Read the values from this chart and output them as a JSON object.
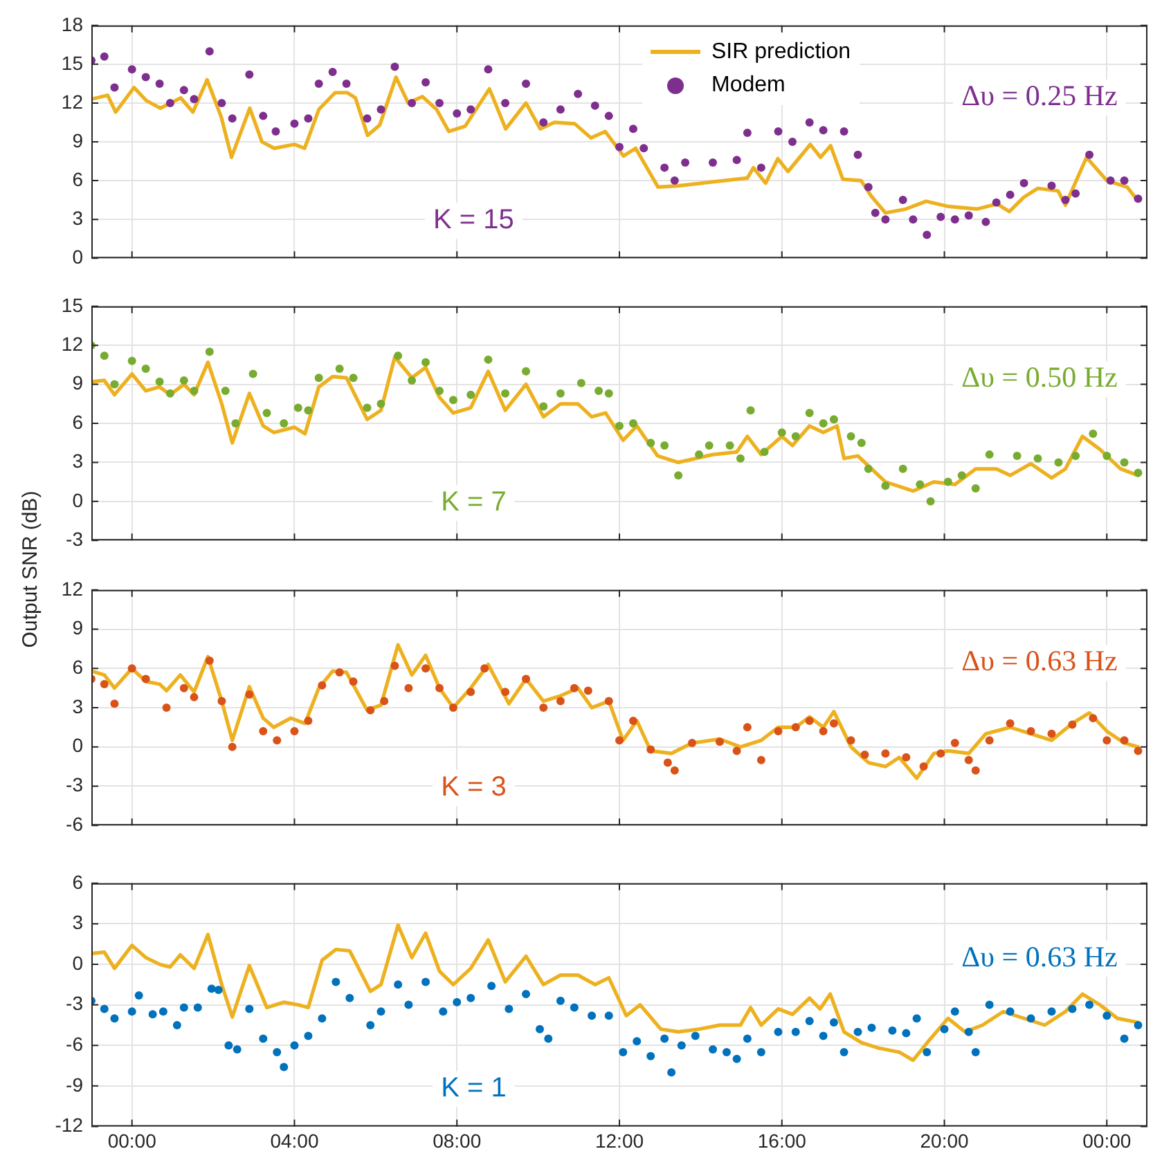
{
  "chart_data": [
    {
      "type": "line",
      "ylim": [
        0,
        18
      ],
      "yticks": [
        0,
        3,
        6,
        9,
        12,
        15,
        18
      ],
      "xlim": [
        -1,
        25
      ],
      "xticks": [
        {
          "value": 0,
          "label": null
        },
        {
          "value": 4,
          "label": null
        },
        {
          "value": 8,
          "label": null
        },
        {
          "value": 12,
          "label": null
        },
        {
          "value": 16,
          "label": null
        },
        {
          "value": 20,
          "label": null
        },
        {
          "value": 24,
          "label": null
        }
      ],
      "tick_labels": "y",
      "grid": true,
      "legend": "top",
      "annotations": [
        "K = 15",
        "Δυ = 0.25 Hz"
      ],
      "series": [
        {
          "name": "SIR prediction",
          "type": "line",
          "color": "#edb120",
          "x": [
            -1,
            -0.6,
            -0.4,
            0.05,
            0.35,
            0.7,
            1.2,
            1.5,
            1.85,
            2.2,
            2.45,
            2.9,
            3.2,
            3.5,
            4.0,
            4.25,
            4.6,
            5.0,
            5.3,
            5.5,
            5.8,
            6.1,
            6.5,
            6.8,
            7.15,
            7.5,
            7.8,
            8.2,
            8.8,
            9.2,
            9.7,
            10.05,
            10.4,
            10.9,
            11.3,
            11.65,
            12.1,
            12.4,
            12.95,
            13.45,
            14.3,
            15.15,
            15.3,
            15.6,
            15.9,
            16.15,
            16.7,
            16.95,
            17.2,
            17.5,
            17.95,
            18.2,
            18.55,
            19.05,
            19.55,
            20.1,
            20.8,
            21.3,
            21.6,
            21.95,
            22.3,
            22.8,
            22.98,
            23.5,
            24.0,
            24.5,
            24.75
          ],
          "values": [
            12.3,
            12.6,
            11.3,
            13.2,
            12.2,
            11.6,
            12.4,
            11.3,
            13.8,
            10.9,
            7.8,
            11.6,
            9.0,
            8.5,
            8.8,
            8.5,
            11.5,
            12.8,
            12.8,
            12.4,
            9.5,
            10.3,
            14.0,
            12.0,
            12.5,
            11.5,
            9.8,
            10.2,
            13.1,
            10.0,
            12.0,
            10.0,
            10.5,
            10.4,
            9.3,
            9.8,
            7.9,
            8.5,
            5.5,
            5.6,
            5.9,
            6.2,
            7.0,
            5.8,
            7.7,
            6.7,
            8.8,
            7.8,
            8.7,
            6.1,
            6.0,
            4.8,
            3.5,
            3.8,
            4.4,
            4.0,
            3.8,
            4.2,
            3.6,
            4.7,
            5.4,
            5.2,
            4.1,
            7.8,
            6.0,
            5.5,
            4.5
          ]
        },
        {
          "name": "Modem",
          "type": "scatter",
          "marker": "circle",
          "color": "#7e2f8e",
          "x": [
            -1,
            -0.68,
            -0.43,
            0,
            0.34,
            0.68,
            0.94,
            1.28,
            1.53,
            1.91,
            2.21,
            2.47,
            2.89,
            3.23,
            3.54,
            4.0,
            4.34,
            4.6,
            4.94,
            5.28,
            5.79,
            6.13,
            6.47,
            6.89,
            7.23,
            7.57,
            8.0,
            8.34,
            8.77,
            9.19,
            9.7,
            10.13,
            10.55,
            10.98,
            11.4,
            11.74,
            12.0,
            12.34,
            12.6,
            13.11,
            13.36,
            13.62,
            14.3,
            14.89,
            15.15,
            15.49,
            15.91,
            16.26,
            16.68,
            17.02,
            17.53,
            17.87,
            18.13,
            18.3,
            18.55,
            18.98,
            19.23,
            19.57,
            19.91,
            20.26,
            20.6,
            21.02,
            21.28,
            21.62,
            21.96,
            22.64,
            22.98,
            23.23,
            23.57,
            24.09,
            24.43,
            24.77
          ],
          "values": [
            15.3,
            15.6,
            13.2,
            14.6,
            14.0,
            13.5,
            12.0,
            13.0,
            12.3,
            16.0,
            12.0,
            10.8,
            14.2,
            11.0,
            9.8,
            10.4,
            10.8,
            13.5,
            14.4,
            13.5,
            10.8,
            11.5,
            14.8,
            12.0,
            13.6,
            12.0,
            11.2,
            11.5,
            14.6,
            12.0,
            13.5,
            10.5,
            11.5,
            12.7,
            11.8,
            11.0,
            8.6,
            10.0,
            8.5,
            7.0,
            6.0,
            7.4,
            7.4,
            7.6,
            9.7,
            7.0,
            9.8,
            9.0,
            10.5,
            9.9,
            9.8,
            8.0,
            5.5,
            3.5,
            3.0,
            4.5,
            3.0,
            1.8,
            3.2,
            3.0,
            3.3,
            2.8,
            4.3,
            4.9,
            5.8,
            5.6,
            4.5,
            5.0,
            8.0,
            6.0,
            6.0,
            4.6
          ]
        }
      ]
    },
    {
      "type": "line",
      "ylim": [
        -3,
        15
      ],
      "yticks": [
        -3,
        0,
        3,
        6,
        9,
        12,
        15
      ],
      "xlim": [
        -1,
        25
      ],
      "xticks": [
        {
          "value": 0,
          "label": null
        },
        {
          "value": 4,
          "label": null
        },
        {
          "value": 8,
          "label": null
        },
        {
          "value": 12,
          "label": null
        },
        {
          "value": 16,
          "label": null
        },
        {
          "value": 20,
          "label": null
        },
        {
          "value": 24,
          "label": null
        }
      ],
      "tick_labels": "y",
      "grid": true,
      "ylabel": "Output SNR (dB)",
      "annotations": [
        "K = 7",
        "Δυ = 0.50 Hz"
      ],
      "series": [
        {
          "type": "line",
          "color": "#edb120",
          "x": [
            -1,
            -0.68,
            -0.43,
            0,
            0.34,
            0.68,
            0.94,
            1.28,
            1.53,
            1.87,
            2.21,
            2.47,
            2.89,
            3.23,
            3.49,
            4.0,
            4.26,
            4.6,
            4.94,
            5.28,
            5.79,
            6.13,
            6.47,
            6.89,
            7.23,
            7.57,
            7.91,
            8.34,
            8.77,
            9.19,
            9.7,
            10.13,
            10.55,
            10.98,
            11.32,
            11.66,
            12.09,
            12.43,
            12.94,
            13.45,
            14.3,
            14.89,
            15.15,
            15.49,
            16.0,
            16.26,
            16.68,
            17.02,
            17.36,
            17.53,
            17.87,
            18.55,
            19.23,
            19.74,
            20.26,
            20.77,
            21.28,
            21.62,
            22.13,
            22.64,
            22.98,
            23.4,
            23.83,
            24.34,
            24.77
          ],
          "values": [
            9.2,
            9.3,
            8.2,
            9.8,
            8.5,
            8.8,
            8.2,
            9.0,
            8.2,
            10.7,
            7.5,
            4.5,
            8.3,
            5.8,
            5.3,
            5.7,
            5.2,
            8.8,
            9.6,
            9.5,
            6.3,
            7.0,
            11.1,
            9.5,
            10.3,
            8.0,
            6.8,
            7.2,
            10.0,
            7.0,
            9.0,
            6.5,
            7.5,
            7.5,
            6.5,
            6.8,
            4.7,
            5.8,
            3.5,
            3.0,
            3.6,
            3.8,
            5.0,
            3.6,
            5.0,
            4.3,
            5.8,
            5.3,
            5.8,
            3.3,
            3.5,
            1.5,
            0.8,
            1.5,
            1.3,
            2.5,
            2.5,
            2.0,
            2.9,
            1.8,
            2.5,
            5.0,
            4.0,
            2.5,
            2.0
          ]
        },
        {
          "type": "scatter",
          "marker": "circle",
          "color": "#77ac30",
          "x": [
            -1,
            -0.68,
            -0.43,
            0,
            0.34,
            0.68,
            0.94,
            1.28,
            1.53,
            1.91,
            2.3,
            2.55,
            2.98,
            3.32,
            3.74,
            4.09,
            4.34,
            4.6,
            5.11,
            5.45,
            5.79,
            6.13,
            6.55,
            6.89,
            7.23,
            7.57,
            7.91,
            8.34,
            8.77,
            9.19,
            9.7,
            10.13,
            10.55,
            11.06,
            11.49,
            11.74,
            12.0,
            12.34,
            12.77,
            13.11,
            13.45,
            13.96,
            14.21,
            14.72,
            14.98,
            15.23,
            15.57,
            16.0,
            16.34,
            16.68,
            17.02,
            17.28,
            17.7,
            17.96,
            18.13,
            18.55,
            18.98,
            19.4,
            19.66,
            20.09,
            20.43,
            20.77,
            21.11,
            21.79,
            22.3,
            22.81,
            23.23,
            23.66,
            24.0,
            24.43,
            24.77
          ],
          "values": [
            12.0,
            11.2,
            9.0,
            10.8,
            10.2,
            9.2,
            8.3,
            9.3,
            8.5,
            11.5,
            8.5,
            6.0,
            9.8,
            6.8,
            6.0,
            7.2,
            7.0,
            9.5,
            10.2,
            9.5,
            7.2,
            7.5,
            11.2,
            9.3,
            10.7,
            8.5,
            7.8,
            8.2,
            10.9,
            8.3,
            10.0,
            7.3,
            8.3,
            9.1,
            8.5,
            8.3,
            5.8,
            6.0,
            4.5,
            4.3,
            2.0,
            3.6,
            4.3,
            4.3,
            3.3,
            7.0,
            3.8,
            5.3,
            5.0,
            6.8,
            6.0,
            6.3,
            5.0,
            4.5,
            2.5,
            1.2,
            2.5,
            1.3,
            0.0,
            1.5,
            2.0,
            1.0,
            3.6,
            3.5,
            3.3,
            3.0,
            3.5,
            5.2,
            3.5,
            3.0,
            2.2
          ]
        }
      ]
    },
    {
      "type": "line",
      "ylim": [
        -6,
        12
      ],
      "yticks": [
        -6,
        -3,
        0,
        3,
        6,
        9,
        12
      ],
      "xlim": [
        -1,
        25
      ],
      "xticks": [
        {
          "value": 0,
          "label": null
        },
        {
          "value": 4,
          "label": null
        },
        {
          "value": 8,
          "label": null
        },
        {
          "value": 12,
          "label": null
        },
        {
          "value": 16,
          "label": null
        },
        {
          "value": 20,
          "label": null
        },
        {
          "value": 24,
          "label": null
        }
      ],
      "tick_labels": "y",
      "grid": true,
      "annotations": [
        "K = 3",
        "Δυ = 0.63 Hz"
      ],
      "series": [
        {
          "type": "line",
          "color": "#edb120",
          "x": [
            -1,
            -0.68,
            -0.43,
            0,
            0.34,
            0.68,
            0.85,
            1.19,
            1.53,
            1.87,
            2.21,
            2.47,
            2.89,
            3.23,
            3.49,
            3.91,
            4.26,
            4.6,
            4.94,
            5.28,
            5.79,
            6.13,
            6.55,
            6.89,
            7.23,
            7.57,
            7.91,
            8.34,
            8.77,
            9.28,
            9.7,
            10.13,
            10.55,
            10.98,
            11.32,
            11.74,
            12.09,
            12.43,
            12.77,
            13.28,
            13.79,
            14.47,
            14.98,
            15.49,
            15.91,
            16.34,
            16.68,
            17.02,
            17.28,
            17.7,
            18.13,
            18.55,
            18.89,
            19.32,
            19.74,
            20.09,
            20.6,
            21.02,
            21.62,
            22.13,
            22.64,
            23.15,
            23.57,
            24.0,
            24.43,
            24.77
          ],
          "values": [
            5.8,
            5.5,
            4.5,
            6.0,
            5.0,
            4.8,
            4.3,
            5.5,
            4.2,
            6.9,
            3.5,
            0.5,
            4.6,
            2.2,
            1.5,
            2.2,
            1.8,
            4.5,
            5.8,
            5.7,
            2.8,
            3.2,
            7.8,
            5.5,
            7.0,
            4.5,
            3.0,
            4.5,
            6.3,
            3.3,
            5.2,
            3.5,
            3.9,
            4.5,
            3.0,
            3.5,
            0.5,
            2.0,
            -0.3,
            -0.5,
            0.3,
            0.6,
            0.0,
            0.5,
            1.5,
            1.5,
            2.3,
            1.5,
            2.7,
            0.0,
            -1.2,
            -1.5,
            -0.8,
            -2.4,
            -0.5,
            -0.3,
            -0.5,
            1.0,
            1.5,
            1.0,
            0.5,
            1.8,
            2.6,
            1.2,
            0.3,
            0.0
          ]
        },
        {
          "type": "scatter",
          "marker": "circle",
          "color": "#d95319",
          "x": [
            -1,
            -0.68,
            -0.43,
            0,
            0.34,
            0.85,
            1.28,
            1.53,
            1.91,
            2.21,
            2.47,
            2.89,
            3.23,
            3.57,
            4.0,
            4.34,
            4.68,
            5.11,
            5.45,
            5.87,
            6.21,
            6.47,
            6.81,
            7.23,
            7.57,
            7.91,
            8.34,
            8.68,
            9.19,
            9.7,
            10.13,
            10.55,
            10.89,
            11.23,
            11.74,
            12.0,
            12.34,
            12.77,
            13.19,
            13.36,
            13.79,
            14.47,
            14.89,
            15.15,
            15.49,
            15.91,
            16.34,
            16.68,
            17.02,
            17.28,
            17.7,
            18.04,
            18.55,
            19.06,
            19.49,
            19.91,
            20.26,
            20.6,
            20.77,
            21.11,
            21.62,
            22.13,
            22.64,
            23.15,
            23.66,
            24.0,
            24.43,
            24.77
          ],
          "values": [
            5.2,
            4.8,
            3.3,
            6.0,
            5.2,
            3.0,
            4.5,
            3.8,
            6.6,
            3.5,
            0.0,
            4.0,
            1.2,
            0.5,
            1.2,
            2.0,
            4.7,
            5.7,
            5.0,
            2.8,
            3.5,
            6.2,
            4.5,
            6.0,
            4.5,
            3.0,
            4.2,
            6.0,
            4.2,
            5.2,
            3.0,
            3.5,
            4.5,
            4.3,
            3.5,
            0.5,
            2.0,
            -0.2,
            -1.2,
            -1.8,
            0.3,
            0.4,
            -0.3,
            1.5,
            -1.0,
            1.2,
            1.5,
            2.0,
            1.2,
            1.8,
            0.5,
            -0.6,
            -0.5,
            -0.8,
            -1.5,
            -0.5,
            0.3,
            -1.0,
            -1.8,
            0.5,
            1.8,
            1.2,
            1.0,
            1.7,
            2.2,
            0.5,
            0.5,
            -0.3
          ]
        }
      ]
    },
    {
      "type": "line",
      "ylim": [
        -12,
        6
      ],
      "yticks": [
        -12,
        -9,
        -6,
        -3,
        0,
        3,
        6
      ],
      "xlim": [
        -1,
        25
      ],
      "xticks": [
        {
          "value": 0,
          "label": "00:00"
        },
        {
          "value": 4,
          "label": "04:00"
        },
        {
          "value": 8,
          "label": "08:00"
        },
        {
          "value": 12,
          "label": "12:00"
        },
        {
          "value": 16,
          "label": "16:00"
        },
        {
          "value": 20,
          "label": "20:00"
        },
        {
          "value": 24,
          "label": "00:00"
        }
      ],
      "grid": true,
      "annotations": [
        "K = 1",
        "Δυ = 0.63 Hz"
      ],
      "series": [
        {
          "type": "line",
          "color": "#edb120",
          "x": [
            -1,
            -0.68,
            -0.43,
            0,
            0.34,
            0.68,
            0.94,
            1.19,
            1.53,
            1.87,
            2.21,
            2.47,
            2.89,
            3.32,
            3.74,
            4.09,
            4.34,
            4.68,
            5.02,
            5.36,
            5.87,
            6.13,
            6.55,
            6.89,
            7.23,
            7.57,
            7.91,
            8.34,
            8.77,
            9.19,
            9.7,
            10.13,
            10.55,
            10.98,
            11.4,
            11.74,
            12.17,
            12.51,
            13.02,
            13.45,
            13.96,
            14.47,
            14.98,
            15.23,
            15.49,
            15.91,
            16.26,
            16.68,
            16.94,
            17.19,
            17.53,
            17.96,
            18.38,
            18.89,
            19.23,
            19.66,
            20.09,
            20.51,
            20.94,
            21.45,
            21.96,
            22.47,
            22.98,
            23.4,
            23.83,
            24.26,
            24.77
          ],
          "values": [
            0.8,
            0.9,
            -0.3,
            1.4,
            0.5,
            0.0,
            -0.2,
            0.7,
            -0.3,
            2.2,
            -1.5,
            -3.9,
            -0.1,
            -3.2,
            -2.8,
            -3.0,
            -3.2,
            0.3,
            1.1,
            1.0,
            -2.0,
            -1.5,
            2.9,
            0.5,
            2.3,
            -0.5,
            -1.5,
            -0.3,
            1.8,
            -1.3,
            0.6,
            -1.5,
            -0.8,
            -0.8,
            -1.5,
            -1.0,
            -3.8,
            -3.0,
            -4.8,
            -5.0,
            -4.8,
            -4.5,
            -4.5,
            -3.2,
            -4.5,
            -3.3,
            -3.7,
            -2.5,
            -3.3,
            -2.2,
            -5.0,
            -5.8,
            -6.2,
            -6.5,
            -7.1,
            -5.5,
            -4.0,
            -5.0,
            -4.5,
            -3.5,
            -4.0,
            -4.5,
            -3.5,
            -2.2,
            -3.0,
            -4.0,
            -4.3
          ]
        },
        {
          "type": "scatter",
          "marker": "circle",
          "color": "#0072bd",
          "x": [
            -1,
            -0.68,
            -0.43,
            0,
            0.17,
            0.51,
            0.77,
            1.11,
            1.28,
            1.62,
            1.96,
            2.13,
            2.38,
            2.59,
            2.89,
            3.23,
            3.57,
            3.74,
            4.0,
            4.34,
            4.68,
            5.02,
            5.36,
            5.87,
            6.13,
            6.55,
            6.81,
            7.23,
            7.66,
            8.0,
            8.34,
            8.85,
            9.28,
            9.7,
            10.04,
            10.25,
            10.55,
            10.89,
            11.32,
            11.74,
            12.09,
            12.43,
            12.77,
            13.11,
            13.28,
            13.53,
            13.87,
            14.3,
            14.64,
            14.89,
            15.15,
            15.49,
            15.91,
            16.34,
            16.68,
            17.02,
            17.28,
            17.53,
            17.87,
            18.21,
            18.72,
            19.06,
            19.32,
            19.57,
            20.0,
            20.26,
            20.6,
            20.77,
            21.11,
            21.62,
            22.13,
            22.64,
            23.15,
            23.57,
            24.0,
            24.43,
            24.77
          ],
          "values": [
            -2.7,
            -3.3,
            -4.0,
            -3.5,
            -2.3,
            -3.7,
            -3.5,
            -4.5,
            -3.2,
            -3.2,
            -1.8,
            -1.9,
            -6.0,
            -6.3,
            -3.3,
            -5.5,
            -6.5,
            -7.6,
            -6.0,
            -5.3,
            -4.0,
            -1.3,
            -2.5,
            -4.5,
            -3.5,
            -1.5,
            -3.0,
            -1.3,
            -3.5,
            -2.8,
            -2.5,
            -1.6,
            -3.3,
            -2.2,
            -4.8,
            -5.5,
            -2.7,
            -3.2,
            -3.8,
            -3.8,
            -6.5,
            -5.7,
            -6.8,
            -5.5,
            -8.0,
            -6.0,
            -5.3,
            -6.3,
            -6.5,
            -7.0,
            -5.5,
            -6.5,
            -5.0,
            -5.0,
            -4.2,
            -5.3,
            -4.3,
            -6.5,
            -5.0,
            -4.7,
            -4.9,
            -5.1,
            -4.0,
            -6.5,
            -4.8,
            -3.5,
            -5.0,
            -6.5,
            -3.0,
            -3.5,
            -4.0,
            -3.5,
            -3.3,
            -3.0,
            -3.8,
            -5.5,
            -4.5
          ]
        }
      ]
    }
  ]
}
